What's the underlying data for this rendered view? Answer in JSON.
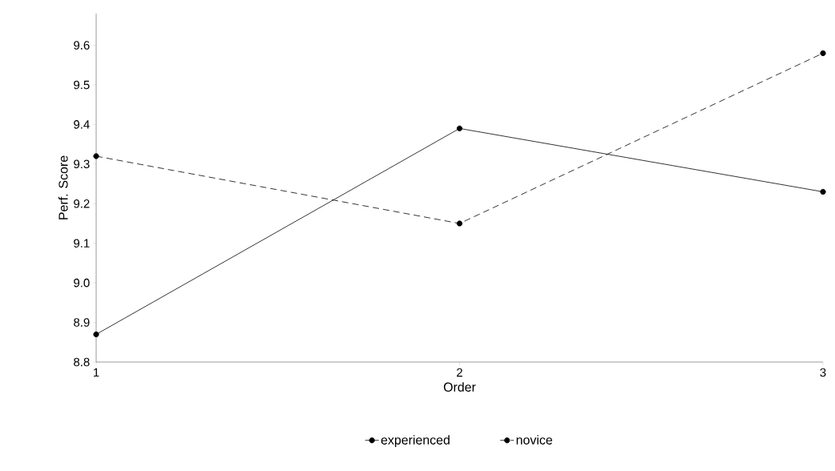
{
  "chart_data": {
    "type": "line",
    "xlabel": "Order",
    "ylabel": "Perf. Score",
    "x": [
      1,
      2,
      3
    ],
    "series": [
      {
        "name": "experienced",
        "color": "#000000",
        "values": [
          8.87,
          9.39,
          9.23
        ],
        "line_style": "solid",
        "marker": "circle"
      },
      {
        "name": "novice",
        "color": "#000000",
        "values": [
          9.32,
          9.15,
          9.58
        ],
        "line_style": "dashed",
        "marker": "circle"
      }
    ],
    "xlim": [
      1,
      3
    ],
    "ylim": [
      8.8,
      9.68
    ],
    "xticks": [
      1,
      2,
      3
    ],
    "yticks": [
      {
        "value": 8.8,
        "label": "8.8"
      },
      {
        "value": 8.9,
        "label": "8.9"
      },
      {
        "value": 9.0,
        "label": "9.0"
      },
      {
        "value": 9.1,
        "label": "9.1"
      },
      {
        "value": 9.2,
        "label": "9.2"
      },
      {
        "value": 9.3,
        "label": "9.3"
      },
      {
        "value": 9.4,
        "label": "9.4"
      },
      {
        "value": 9.5,
        "label": "9.5"
      },
      {
        "value": 9.6,
        "label": "9.6"
      }
    ],
    "legend": "bottom",
    "grid": false
  }
}
